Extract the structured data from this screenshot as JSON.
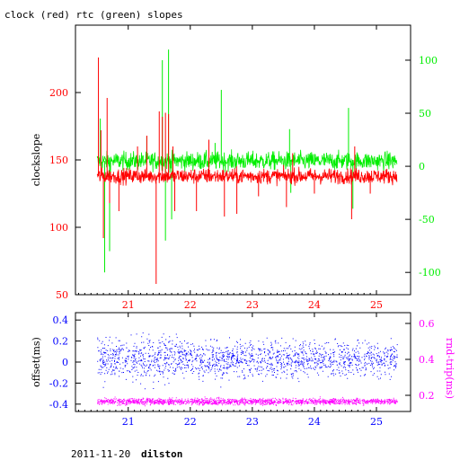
{
  "title": "clock (red) rtc (green) slopes",
  "footer": {
    "date": "2011-11-20",
    "host": "dilston"
  },
  "colors": {
    "clock": "#ff0000",
    "rtc": "#00ee00",
    "offset": "#0000ff",
    "rndtrip": "#ff00ff",
    "frame": "#000000"
  },
  "chart_data": [
    {
      "type": "line",
      "title": "clock (red) rtc (green) slopes",
      "ylabel": "clockslope",
      "ylabel_right": "",
      "xlim": [
        20.15,
        25.55
      ],
      "ylim_left": [
        50,
        250
      ],
      "ylim_right": [
        -121,
        133
      ],
      "x_ticks": [
        21,
        22,
        23,
        24,
        25
      ],
      "y_ticks_left": [
        50,
        100,
        150,
        200
      ],
      "y_ticks_right": [
        -100,
        -50,
        0,
        50,
        100
      ],
      "series": [
        {
          "name": "clock",
          "axis": "left",
          "color": "#ff0000",
          "x_range": [
            20.5,
            25.33
          ],
          "baseline": 138,
          "noise": 4,
          "spikes": [
            [
              20.52,
              226
            ],
            [
              20.56,
              172
            ],
            [
              20.6,
              92
            ],
            [
              20.66,
              196
            ],
            [
              20.7,
              118
            ],
            [
              20.85,
              112
            ],
            [
              21.15,
              160
            ],
            [
              21.3,
              168
            ],
            [
              21.45,
              58
            ],
            [
              21.5,
              186
            ],
            [
              21.55,
              182
            ],
            [
              21.6,
              185
            ],
            [
              21.65,
              184
            ],
            [
              21.72,
              160
            ],
            [
              21.75,
              112
            ],
            [
              22.1,
              112
            ],
            [
              22.3,
              165
            ],
            [
              22.55,
              108
            ],
            [
              22.75,
              110
            ],
            [
              23.1,
              123
            ],
            [
              23.55,
              115
            ],
            [
              23.65,
              155
            ],
            [
              24.0,
              125
            ],
            [
              24.6,
              106
            ],
            [
              24.65,
              160
            ],
            [
              24.9,
              125
            ]
          ]
        },
        {
          "name": "rtc",
          "axis": "right",
          "color": "#00ee00",
          "x_range": [
            20.5,
            25.33
          ],
          "baseline": 5,
          "noise": 6,
          "spikes": [
            [
              20.55,
              45
            ],
            [
              20.62,
              -100
            ],
            [
              20.7,
              -80
            ],
            [
              21.3,
              28
            ],
            [
              21.45,
              0
            ],
            [
              21.55,
              100
            ],
            [
              21.6,
              -70
            ],
            [
              21.65,
              110
            ],
            [
              21.7,
              -50
            ],
            [
              22.4,
              22
            ],
            [
              22.5,
              72
            ],
            [
              23.6,
              35
            ],
            [
              23.62,
              -25
            ],
            [
              24.55,
              55
            ],
            [
              24.62,
              -40
            ],
            [
              25.2,
              12
            ]
          ]
        }
      ]
    },
    {
      "type": "scatter",
      "ylabel": "offset(ms)",
      "ylabel_right": "rnd-trip(ms)",
      "xlim": [
        20.15,
        25.55
      ],
      "ylim_left": [
        -0.47,
        0.47
      ],
      "ylim_right": [
        0.11,
        0.66
      ],
      "x_ticks": [
        21,
        22,
        23,
        24,
        25
      ],
      "y_ticks_left": [
        -0.4,
        -0.2,
        0,
        0.2,
        0.4
      ],
      "y_ticks_right": [
        0.2,
        0.4,
        0.6
      ],
      "series": [
        {
          "name": "offset",
          "axis": "left",
          "color": "#0000ff",
          "x_range": [
            20.5,
            25.33
          ],
          "center": 0.03,
          "spread": 0.12
        },
        {
          "name": "rnd-trip",
          "axis": "right",
          "color": "#ff00ff",
          "x_range": [
            20.5,
            25.33
          ],
          "center": 0.165,
          "spread": 0.012
        }
      ]
    }
  ]
}
